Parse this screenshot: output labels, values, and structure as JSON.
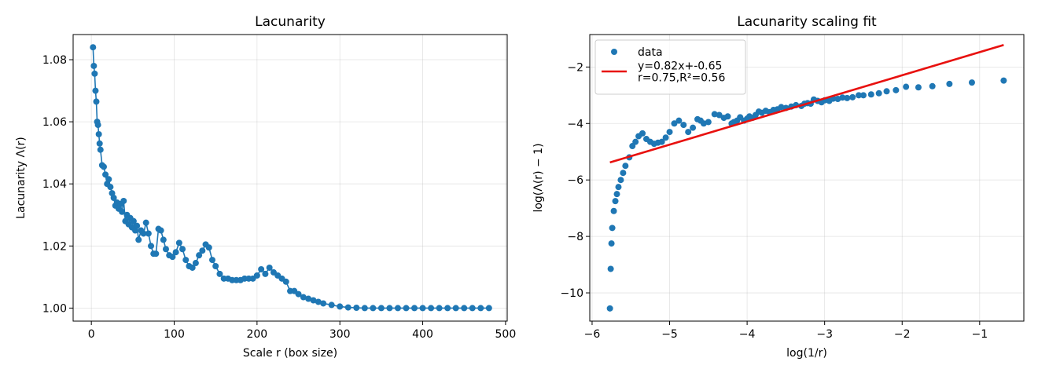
{
  "chart_data": [
    {
      "type": "line",
      "title": "Lacunarity",
      "xlabel": "Scale r (box size)",
      "ylabel": "Lacunarity Λ(r)",
      "xlim": [
        -22,
        502
      ],
      "xticks": [
        0,
        100,
        200,
        300,
        400,
        500
      ],
      "ylim": [
        0.9958,
        1.0881
      ],
      "yticks": [
        {
          "value": 1.0,
          "label": "1.00"
        },
        {
          "value": 1.02,
          "label": "1.02"
        },
        {
          "value": 1.04,
          "label": "1.04"
        },
        {
          "value": 1.06,
          "label": "1.06"
        },
        {
          "value": 1.08,
          "label": "1.08"
        }
      ],
      "grid": true,
      "series": [
        {
          "color": "#1f77b4",
          "markers": true,
          "x": [
            2,
            3,
            4,
            5,
            6,
            7,
            8,
            9,
            10,
            11,
            13,
            15,
            17,
            19,
            21,
            23,
            25,
            27,
            29,
            31,
            33,
            35,
            37,
            39,
            41,
            43,
            45,
            47,
            49,
            51,
            53,
            55,
            57,
            60,
            63,
            66,
            69,
            72,
            75,
            78,
            81,
            84,
            87,
            90,
            94,
            98,
            102,
            106,
            110,
            114,
            118,
            122,
            126,
            130,
            134,
            138,
            142,
            146,
            150,
            155,
            160,
            165,
            170,
            175,
            180,
            185,
            190,
            195,
            200,
            205,
            210,
            215,
            220,
            225,
            230,
            235,
            240,
            245,
            250,
            256,
            262,
            268,
            274,
            280,
            290,
            300,
            310,
            320,
            330,
            340,
            350,
            360,
            370,
            380,
            390,
            400,
            410,
            420,
            430,
            440,
            450,
            460,
            470,
            480
          ],
          "values": [
            1.084,
            1.078,
            1.0755,
            1.07,
            1.0665,
            1.06,
            1.059,
            1.056,
            1.053,
            1.051,
            1.046,
            1.0455,
            1.043,
            1.04,
            1.0415,
            1.039,
            1.037,
            1.0355,
            1.033,
            1.034,
            1.032,
            1.0335,
            1.031,
            1.0345,
            1.028,
            1.03,
            1.027,
            1.029,
            1.026,
            1.028,
            1.025,
            1.0265,
            1.022,
            1.025,
            1.024,
            1.0275,
            1.024,
            1.02,
            1.0175,
            1.0175,
            1.0255,
            1.025,
            1.022,
            1.019,
            1.017,
            1.0165,
            1.018,
            1.021,
            1.019,
            1.0155,
            1.0135,
            1.013,
            1.0145,
            1.017,
            1.0185,
            1.0205,
            1.0195,
            1.0155,
            1.0135,
            1.011,
            1.0095,
            1.0095,
            1.009,
            1.009,
            1.009,
            1.0095,
            1.0095,
            1.0095,
            1.0105,
            1.0125,
            1.011,
            1.013,
            1.0115,
            1.0105,
            1.0095,
            1.0085,
            1.0055,
            1.0055,
            1.0045,
            1.0035,
            1.003,
            1.0025,
            1.002,
            1.0015,
            1.001,
            1.0005,
            1.0002,
            1.0001,
            1.0,
            1.0,
            1.0,
            1.0,
            1.0,
            1.0,
            1.0,
            1.0,
            1.0,
            1.0,
            1.0,
            1.0,
            1.0,
            1.0,
            1.0,
            1.0
          ]
        }
      ]
    },
    {
      "type": "scatter",
      "title": "Lacunarity scaling fit",
      "xlabel": "log(1/r)",
      "ylabel": "log(Λ(r) − 1)",
      "xlim": [
        -6.03,
        -0.43
      ],
      "xticks": [
        {
          "value": -6,
          "label": "−6"
        },
        {
          "value": -5,
          "label": "−5"
        },
        {
          "value": -4,
          "label": "−4"
        },
        {
          "value": -3,
          "label": "−3"
        },
        {
          "value": -2,
          "label": "−2"
        },
        {
          "value": -1,
          "label": "−1"
        }
      ],
      "ylim": [
        -11.0,
        -0.85
      ],
      "yticks": [
        {
          "value": -10,
          "label": "−10"
        },
        {
          "value": -8,
          "label": "−8"
        },
        {
          "value": -6,
          "label": "−6"
        },
        {
          "value": -4,
          "label": "−4"
        },
        {
          "value": -2,
          "label": "−2"
        }
      ],
      "grid": true,
      "legend": "upper left",
      "series": [
        {
          "name": "data",
          "type": "scatter",
          "color": "#1f77b4",
          "x": [
            -0.69,
            -1.1,
            -1.39,
            -1.61,
            -1.79,
            -1.95,
            -2.08,
            -2.2,
            -2.3,
            -2.4,
            -2.5,
            -2.56,
            -2.64,
            -2.71,
            -2.77,
            -2.83,
            -2.89,
            -2.94,
            -3.0,
            -3.04,
            -3.09,
            -3.14,
            -3.18,
            -3.22,
            -3.26,
            -3.3,
            -3.37,
            -3.43,
            -3.5,
            -3.56,
            -3.61,
            -3.66,
            -3.71,
            -3.76,
            -3.81,
            -3.85,
            -3.89,
            -3.93,
            -3.97,
            -4.0,
            -4.04,
            -4.09,
            -4.13,
            -4.17,
            -4.2,
            -4.25,
            -4.3,
            -4.36,
            -4.42,
            -4.5,
            -4.56,
            -4.6,
            -4.64,
            -4.7,
            -4.76,
            -4.82,
            -4.88,
            -4.94,
            -5.0,
            -5.05,
            -5.1,
            -5.15,
            -5.2,
            -5.25,
            -5.3,
            -5.35,
            -5.4,
            -5.44,
            -5.48,
            -5.52,
            -5.57,
            -5.6,
            -5.63,
            -5.66,
            -5.68,
            -5.7,
            -5.72,
            -5.74,
            -5.75,
            -5.76,
            -5.77
          ],
          "values": [
            -2.48,
            -2.55,
            -2.6,
            -2.68,
            -2.72,
            -2.7,
            -2.82,
            -2.86,
            -2.93,
            -2.97,
            -3.0,
            -3.0,
            -3.07,
            -3.1,
            -3.08,
            -3.13,
            -3.12,
            -3.2,
            -3.18,
            -3.25,
            -3.2,
            -3.15,
            -3.3,
            -3.28,
            -3.3,
            -3.38,
            -3.35,
            -3.4,
            -3.45,
            -3.42,
            -3.5,
            -3.52,
            -3.6,
            -3.55,
            -3.62,
            -3.58,
            -3.7,
            -3.8,
            -3.75,
            -3.83,
            -3.9,
            -3.78,
            -3.9,
            -3.95,
            -4.0,
            -3.75,
            -3.8,
            -3.7,
            -3.67,
            -3.95,
            -4.0,
            -3.9,
            -3.85,
            -4.15,
            -4.3,
            -4.05,
            -3.9,
            -4.0,
            -4.3,
            -4.5,
            -4.65,
            -4.68,
            -4.72,
            -4.65,
            -4.55,
            -4.35,
            -4.45,
            -4.65,
            -4.8,
            -5.2,
            -5.5,
            -5.75,
            -6.0,
            -6.25,
            -6.5,
            -6.75,
            -7.1,
            -7.7,
            -8.25,
            -9.15,
            -10.55
          ]
        },
        {
          "name": "y=0.82x+-0.65\nr=0.75,R²=0.56",
          "type": "line",
          "color": "#e8110f",
          "x": [
            -5.77,
            -0.69
          ],
          "values": [
            -5.38,
            -1.22
          ]
        }
      ]
    }
  ]
}
